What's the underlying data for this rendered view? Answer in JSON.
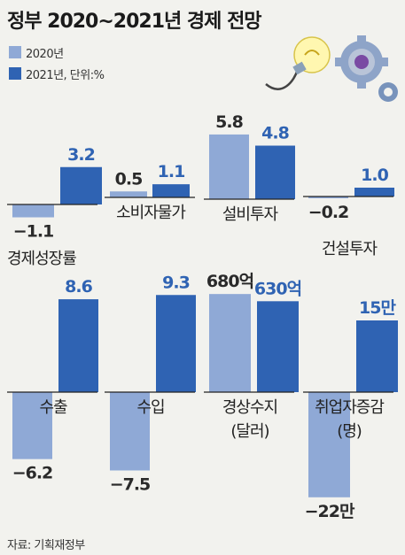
{
  "title": "정부 2020~2021년 경제 전망",
  "legend": [
    {
      "label": "2020년",
      "color": "#8fa9d6"
    },
    {
      "label": "2021년, 단위:%",
      "color": "#2f63b3"
    }
  ],
  "source": "자료: 기획재정부",
  "colors": {
    "y2020": "#8fa9d6",
    "y2021": "#2f63b3",
    "background": "#f2f2ee"
  },
  "chart_data": {
    "type": "bar",
    "series": [
      {
        "name": "2020년",
        "color": "#8fa9d6"
      },
      {
        "name": "2021년",
        "color": "#2f63b3"
      }
    ],
    "panels": [
      {
        "category": "경제성장률",
        "values": [
          -1.1,
          3.2
        ],
        "labels": [
          "−1.1",
          "3.2"
        ],
        "unit": "%"
      },
      {
        "category": "소비자물가",
        "values": [
          0.5,
          1.1
        ],
        "labels": [
          "0.5",
          "1.1"
        ],
        "unit": "%"
      },
      {
        "category": "설비투자",
        "values": [
          5.8,
          4.8
        ],
        "labels": [
          "5.8",
          "4.8"
        ],
        "unit": "%"
      },
      {
        "category": "건설투자",
        "values": [
          -0.2,
          1.0
        ],
        "labels": [
          "−0.2",
          "1.0"
        ],
        "unit": "%"
      },
      {
        "category": "수출",
        "values": [
          -6.2,
          8.6
        ],
        "labels": [
          "−6.2",
          "8.6"
        ],
        "unit": "%"
      },
      {
        "category": "수입",
        "values": [
          -7.5,
          9.3
        ],
        "labels": [
          "−7.5",
          "9.3"
        ],
        "unit": "%"
      },
      {
        "category": "경상수지\n(달러)",
        "values": [
          680,
          630
        ],
        "labels": [
          "680억",
          "630억"
        ],
        "unit": "억 달러"
      },
      {
        "category": "취업자증감\n(명)",
        "values": [
          -22,
          15
        ],
        "labels": [
          "−22만",
          "15만"
        ],
        "unit": "만 명"
      }
    ]
  }
}
